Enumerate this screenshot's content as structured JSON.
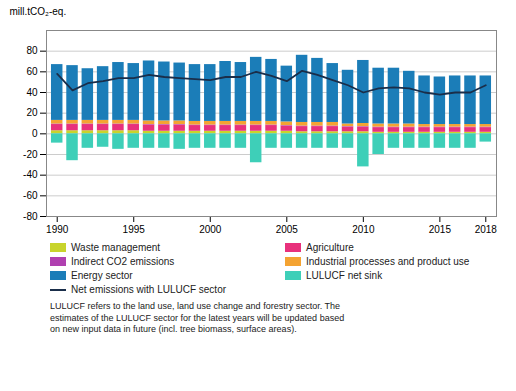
{
  "chart_data": {
    "type": "bar",
    "stacked": true,
    "ylabel": "mill.tCO₂-eq.",
    "x": [
      1990,
      1991,
      1992,
      1993,
      1994,
      1995,
      1996,
      1997,
      1998,
      1999,
      2000,
      2001,
      2002,
      2003,
      2004,
      2005,
      2006,
      2007,
      2008,
      2009,
      2010,
      2011,
      2012,
      2013,
      2014,
      2015,
      2016,
      2017,
      2018
    ],
    "xlim": [
      1989.3,
      2018.7
    ],
    "xticks": [
      1990,
      1995,
      2000,
      2005,
      2010,
      2015,
      2018
    ],
    "ylim": [
      -80,
      100
    ],
    "yticks": [
      -80,
      -60,
      -40,
      -20,
      0,
      20,
      40,
      60,
      80
    ],
    "grid": true,
    "legend": "bottom",
    "series": [
      {
        "name": "Waste management",
        "color": "#c8d42c",
        "values": [
          3,
          3,
          3,
          3,
          3,
          3,
          2.5,
          2.5,
          2.5,
          2.5,
          2.5,
          2.5,
          2.5,
          2.5,
          2.5,
          2.5,
          2,
          2,
          2,
          2,
          2,
          1.5,
          1.5,
          1.5,
          1.5,
          1.5,
          1.5,
          1.5,
          1.5
        ]
      },
      {
        "name": "Agriculture",
        "color": "#e8317c",
        "values": [
          6,
          6,
          6,
          6,
          6,
          6,
          6,
          6,
          6,
          5.5,
          5.5,
          5.5,
          5.5,
          5.5,
          5.5,
          5,
          5,
          5,
          5,
          4.5,
          4.5,
          4.5,
          4.5,
          4.5,
          4.5,
          4.5,
          4.5,
          4.5,
          4.5
        ]
      },
      {
        "name": "Indirect CO2 emissions",
        "color": "#b040b0",
        "values": [
          0.5,
          0.5,
          0.5,
          0.5,
          0.5,
          0.5,
          0.5,
          0.5,
          0.5,
          0.5,
          0.5,
          0.5,
          0.5,
          0.5,
          0.5,
          0.5,
          0.5,
          0.5,
          0.5,
          0.5,
          0.5,
          0.5,
          0.5,
          0.5,
          0.5,
          0.5,
          0.5,
          0.5,
          0.5
        ]
      },
      {
        "name": "Industrial processes and product use",
        "color": "#f4a332",
        "values": [
          3.5,
          3.5,
          3.5,
          3.5,
          3.5,
          3.5,
          3.5,
          3.5,
          3.5,
          3.5,
          3.5,
          3.5,
          3.5,
          3.5,
          3.5,
          3.5,
          3.5,
          3.5,
          3.5,
          2.5,
          3,
          3,
          3,
          3,
          2.5,
          2.5,
          2.5,
          2.5,
          2.5
        ]
      },
      {
        "name": "Energy sector",
        "color": "#1b7db8",
        "values": [
          54,
          53,
          50,
          52,
          56,
          55,
          58,
          57,
          56,
          55,
          55,
          58,
          57,
          62,
          60,
          54,
          65,
          62,
          57,
          52,
          61,
          54,
          54,
          51,
          47,
          46,
          47,
          47,
          47
        ]
      },
      {
        "name": "LULUCF net sink",
        "color": "#3ecfb8",
        "values": [
          -9,
          -26,
          -14,
          -13,
          -15,
          -14,
          -14,
          -14,
          -15,
          -14,
          -14,
          -14,
          -14,
          -28,
          -14,
          -14,
          -14,
          -14,
          -14,
          -14,
          -32,
          -20,
          -14,
          -14,
          -14,
          -14,
          -14,
          -14,
          -8
        ]
      },
      {
        "name": "Net emissions with LULUCF sector",
        "color": "#1a2e4a",
        "type": "line",
        "values": [
          58,
          42,
          49,
          51,
          54,
          54,
          57,
          55,
          54,
          53,
          52,
          55,
          55,
          60,
          56,
          51,
          61,
          57,
          52,
          47,
          40,
          44,
          45,
          44,
          40,
          38,
          40,
          40,
          47
        ]
      }
    ],
    "annotations": [
      "LULUCF refers to the land use, land use change and forestry sector. The\nestimates of the LULUCF sector for the latest years will be updated based\non new input data in future (incl. tree biomass, surface areas)."
    ]
  }
}
